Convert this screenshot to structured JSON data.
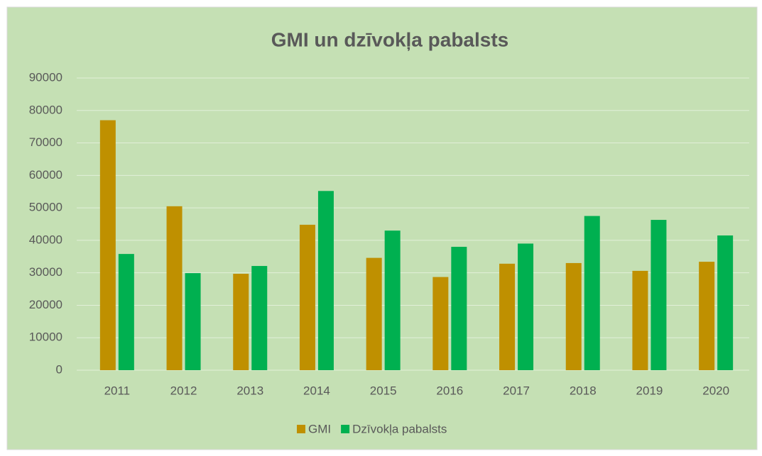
{
  "chart_data": {
    "type": "bar",
    "title": "GMI un dzīvokļa pabalsts",
    "categories": [
      "2011",
      "2012",
      "2013",
      "2014",
      "2015",
      "2016",
      "2017",
      "2018",
      "2019",
      "2020"
    ],
    "series": [
      {
        "name": "GMI",
        "color": "#bf9000",
        "values": [
          77000,
          50500,
          29700,
          44800,
          34600,
          28700,
          32800,
          33000,
          30600,
          33400
        ]
      },
      {
        "name": "Dzīvokļa pabalsts",
        "color": "#00b050",
        "values": [
          35800,
          29900,
          32100,
          55200,
          43000,
          38000,
          39000,
          47500,
          46300,
          41500
        ]
      }
    ],
    "ylim": [
      0,
      90000
    ],
    "yticks": [
      0,
      10000,
      20000,
      30000,
      40000,
      50000,
      60000,
      70000,
      80000,
      90000
    ],
    "grid": true,
    "legend": "bottom"
  }
}
